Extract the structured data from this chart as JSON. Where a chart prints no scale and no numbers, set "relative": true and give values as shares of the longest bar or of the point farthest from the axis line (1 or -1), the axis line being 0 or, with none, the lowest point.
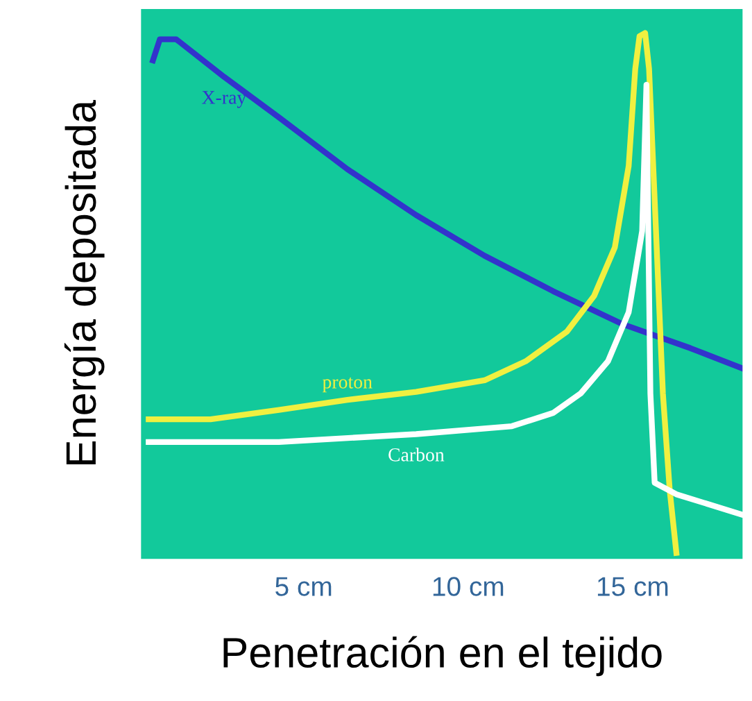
{
  "chart_data": {
    "type": "line",
    "relative": true,
    "xlabel": "Penetración en el tejido",
    "ylabel": "Energía depositada",
    "xlim": [
      0,
      18.4
    ],
    "xticks": [
      {
        "value": 5,
        "label": "5 cm"
      },
      {
        "value": 10,
        "label": "10 cm"
      },
      {
        "value": 15,
        "label": "15 cm"
      }
    ],
    "grid": false,
    "legend": false,
    "marker": "none",
    "line_style": "solid",
    "series": [
      {
        "name": "X-ray",
        "color": "#3333cc",
        "x": [
          0.42,
          0.63,
          1.13,
          2.58,
          4.25,
          6.33,
          8.42,
          10.5,
          12.58,
          14.67,
          16.75,
          18.4
        ],
        "values": [
          0.948,
          0.988,
          0.988,
          0.917,
          0.84,
          0.742,
          0.655,
          0.578,
          0.511,
          0.449,
          0.403,
          0.363
        ]
      },
      {
        "name": "proton",
        "color": "#f0f040",
        "x": [
          0.29,
          2.17,
          4.25,
          6.33,
          8.42,
          10.5,
          11.75,
          13.0,
          13.83,
          14.46,
          14.88,
          15.08,
          15.21,
          15.38,
          15.5,
          15.71,
          15.92,
          16.13,
          16.33
        ],
        "values": [
          0.268,
          0.268,
          0.286,
          0.305,
          0.32,
          0.342,
          0.378,
          0.434,
          0.502,
          0.594,
          0.748,
          0.932,
          0.994,
          1.0,
          0.932,
          0.625,
          0.317,
          0.132,
          0.015
        ]
      },
      {
        "name": "Carbon",
        "color": "#ffffff",
        "x": [
          0.29,
          4.25,
          8.42,
          11.33,
          12.58,
          13.42,
          14.25,
          14.88,
          15.29,
          15.42,
          15.54,
          15.67,
          16.33,
          18.4
        ],
        "values": [
          0.225,
          0.225,
          0.24,
          0.255,
          0.28,
          0.317,
          0.378,
          0.471,
          0.625,
          0.902,
          0.317,
          0.148,
          0.126,
          0.086
        ]
      }
    ]
  }
}
